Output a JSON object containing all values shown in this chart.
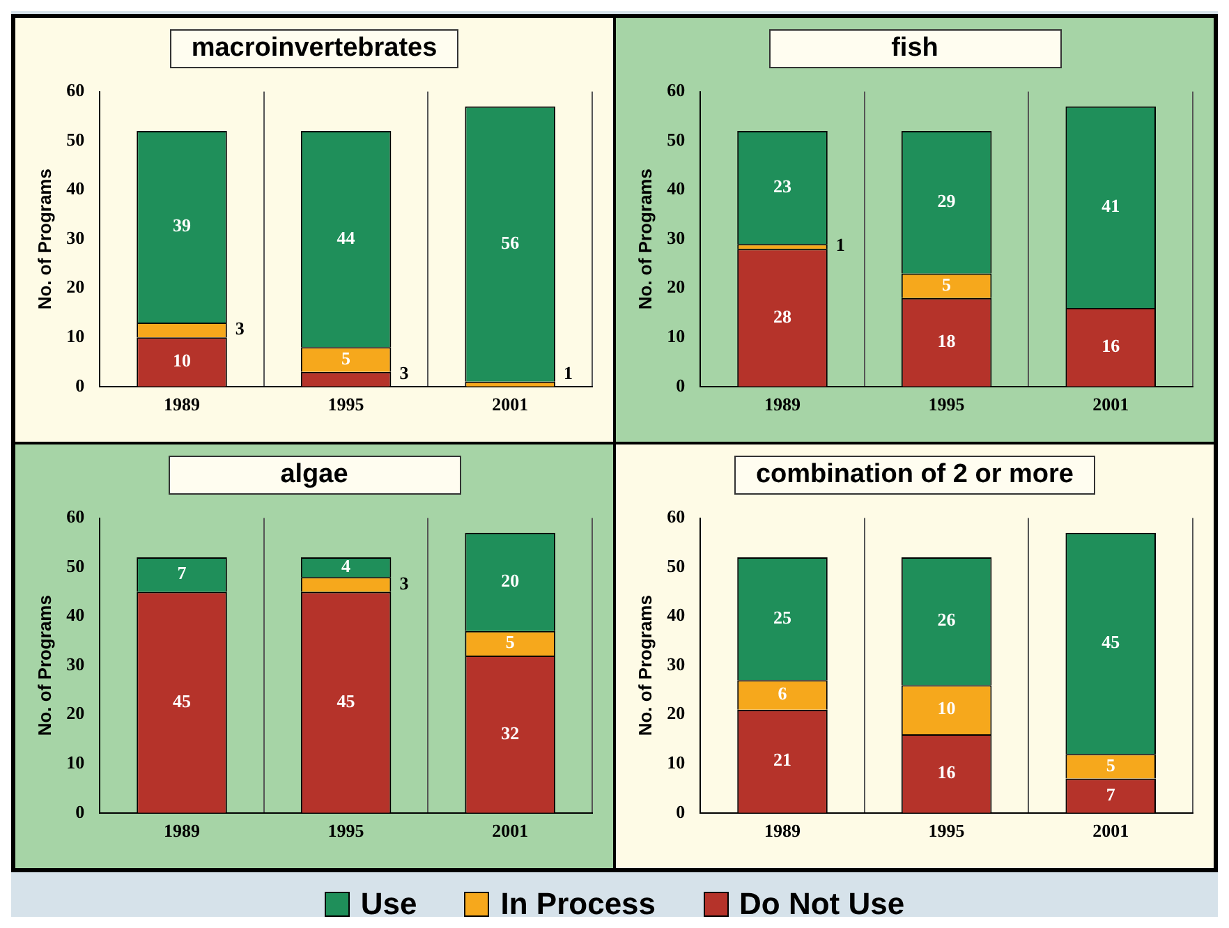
{
  "chart_data": [
    {
      "type": "bar",
      "title": "macroinvertebrates",
      "ylabel": "No. of Programs",
      "categories": [
        "1989",
        "1995",
        "2001"
      ],
      "stacked": true,
      "ylim": [
        0,
        60
      ],
      "yticks": [
        0,
        10,
        20,
        30,
        40,
        50,
        60
      ],
      "grid": "x",
      "data_labels": true,
      "series": [
        {
          "color": "#b5332a",
          "values": [
            10,
            3,
            null
          ]
        },
        {
          "color": "#f6a81c",
          "values": [
            3,
            5,
            1
          ]
        },
        {
          "color": "#1f8f5a",
          "values": [
            39,
            44,
            56
          ]
        }
      ]
    },
    {
      "type": "bar",
      "title": "fish",
      "ylabel": "No. of Programs",
      "categories": [
        "1989",
        "1995",
        "2001"
      ],
      "stacked": true,
      "ylim": [
        0,
        60
      ],
      "yticks": [
        0,
        10,
        20,
        30,
        40,
        50,
        60
      ],
      "grid": "x",
      "data_labels": true,
      "series": [
        {
          "color": "#b5332a",
          "values": [
            28,
            18,
            16
          ]
        },
        {
          "color": "#f6a81c",
          "values": [
            1,
            5,
            null
          ]
        },
        {
          "color": "#1f8f5a",
          "values": [
            23,
            29,
            41
          ]
        }
      ]
    },
    {
      "type": "bar",
      "title": "algae",
      "ylabel": "No. of Programs",
      "categories": [
        "1989",
        "1995",
        "2001"
      ],
      "stacked": true,
      "ylim": [
        0,
        60
      ],
      "yticks": [
        0,
        10,
        20,
        30,
        40,
        50,
        60
      ],
      "grid": "x",
      "data_labels": true,
      "series": [
        {
          "color": "#b5332a",
          "values": [
            45,
            45,
            32
          ]
        },
        {
          "color": "#f6a81c",
          "values": [
            null,
            3,
            5
          ]
        },
        {
          "color": "#1f8f5a",
          "values": [
            7,
            4,
            20
          ]
        }
      ]
    },
    {
      "type": "bar",
      "title": "combination of 2 or more",
      "ylabel": "No. of Programs",
      "categories": [
        "1989",
        "1995",
        "2001"
      ],
      "stacked": true,
      "ylim": [
        0,
        60
      ],
      "yticks": [
        0,
        10,
        20,
        30,
        40,
        50,
        60
      ],
      "grid": "x",
      "legend": "bottom",
      "data_labels": true,
      "series": [
        {
          "name": "Do Not Use",
          "color": "#b5332a",
          "values": [
            21,
            16,
            7
          ]
        },
        {
          "name": "In Process",
          "color": "#f6a81c",
          "values": [
            6,
            10,
            5
          ]
        },
        {
          "name": "Use",
          "color": "#1f8f5a",
          "values": [
            25,
            26,
            45
          ]
        }
      ]
    }
  ]
}
